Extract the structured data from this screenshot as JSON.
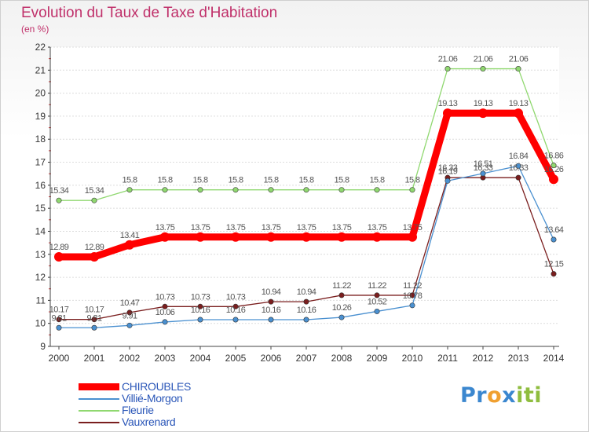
{
  "header": {
    "title": "Evolution du Taux de Taxe d'Habitation",
    "unit": "(en %)"
  },
  "brand": {
    "parts": [
      "Pr",
      "o",
      "x",
      "i",
      "ti"
    ],
    "colors": [
      "#3b87cf",
      "#f0a030",
      "#3b87cf",
      "#8fbd3f",
      "#8fbd3f"
    ]
  },
  "chart_data": {
    "type": "line",
    "title": "Evolution du Taux de Taxe d'Habitation",
    "ylabel": "(en %)",
    "xlabel": "",
    "x": [
      "2000",
      "2001",
      "2002",
      "2003",
      "2004",
      "2005",
      "2006",
      "2007",
      "2008",
      "2009",
      "2010",
      "2011",
      "2012",
      "2013",
      "2014"
    ],
    "ylim": [
      9,
      22
    ],
    "yticks": [
      9,
      10,
      11,
      12,
      13,
      14,
      15,
      16,
      17,
      18,
      19,
      20,
      21,
      22
    ],
    "grid": "horizontal",
    "legend_position": "bottom-left",
    "series": [
      {
        "name": "CHIROUBLES",
        "color": "#ff0000",
        "values": [
          12.89,
          12.89,
          13.41,
          13.75,
          13.75,
          13.75,
          13.75,
          13.75,
          13.75,
          13.75,
          13.75,
          19.13,
          19.13,
          19.13,
          16.26
        ],
        "labels": [
          "12.89",
          "12.89",
          "13.41",
          "13.75",
          "13.75",
          "13.75",
          "13.75",
          "13.75",
          "13.75",
          "13.75",
          "13.75",
          "19.13",
          "19.13",
          "19.13",
          "16.26"
        ]
      },
      {
        "name": "Villié-Morgon",
        "color": "#4a90d0",
        "values": [
          9.81,
          9.81,
          9.91,
          10.06,
          10.16,
          10.16,
          10.16,
          10.16,
          10.26,
          10.52,
          10.78,
          16.19,
          16.51,
          16.84,
          13.64
        ],
        "labels": [
          "9.81",
          "9.81",
          "9.91",
          "10.06",
          "10.16",
          "10.16",
          "10.16",
          "10.16",
          "10.26",
          "10.52",
          "10.78",
          "16.19",
          "16.51",
          "16.84",
          "13.64"
        ]
      },
      {
        "name": "Fleurie",
        "color": "#90d870",
        "values": [
          15.34,
          15.34,
          15.8,
          15.8,
          15.8,
          15.8,
          15.8,
          15.8,
          15.8,
          15.8,
          15.8,
          21.06,
          21.06,
          21.06,
          16.86
        ],
        "labels": [
          "15.34",
          "15.34",
          "15.8",
          "15.8",
          "15.8",
          "15.8",
          "15.8",
          "15.8",
          "15.8",
          "15.8",
          "15.8",
          "21.06",
          "21.06",
          "21.06",
          "16.86"
        ]
      },
      {
        "name": "Vauxrenard",
        "color": "#7a1e1e",
        "values": [
          10.17,
          10.17,
          10.47,
          10.73,
          10.73,
          10.73,
          10.94,
          10.94,
          11.22,
          11.22,
          11.22,
          16.33,
          16.33,
          16.33,
          12.15
        ],
        "labels": [
          "10.17",
          "10.17",
          "10.47",
          "10.73",
          "10.73",
          "10.73",
          "10.94",
          "10.94",
          "11.22",
          "11.22",
          "11.22",
          "16.33",
          "16.33",
          "16.33",
          "12.15"
        ]
      }
    ]
  }
}
